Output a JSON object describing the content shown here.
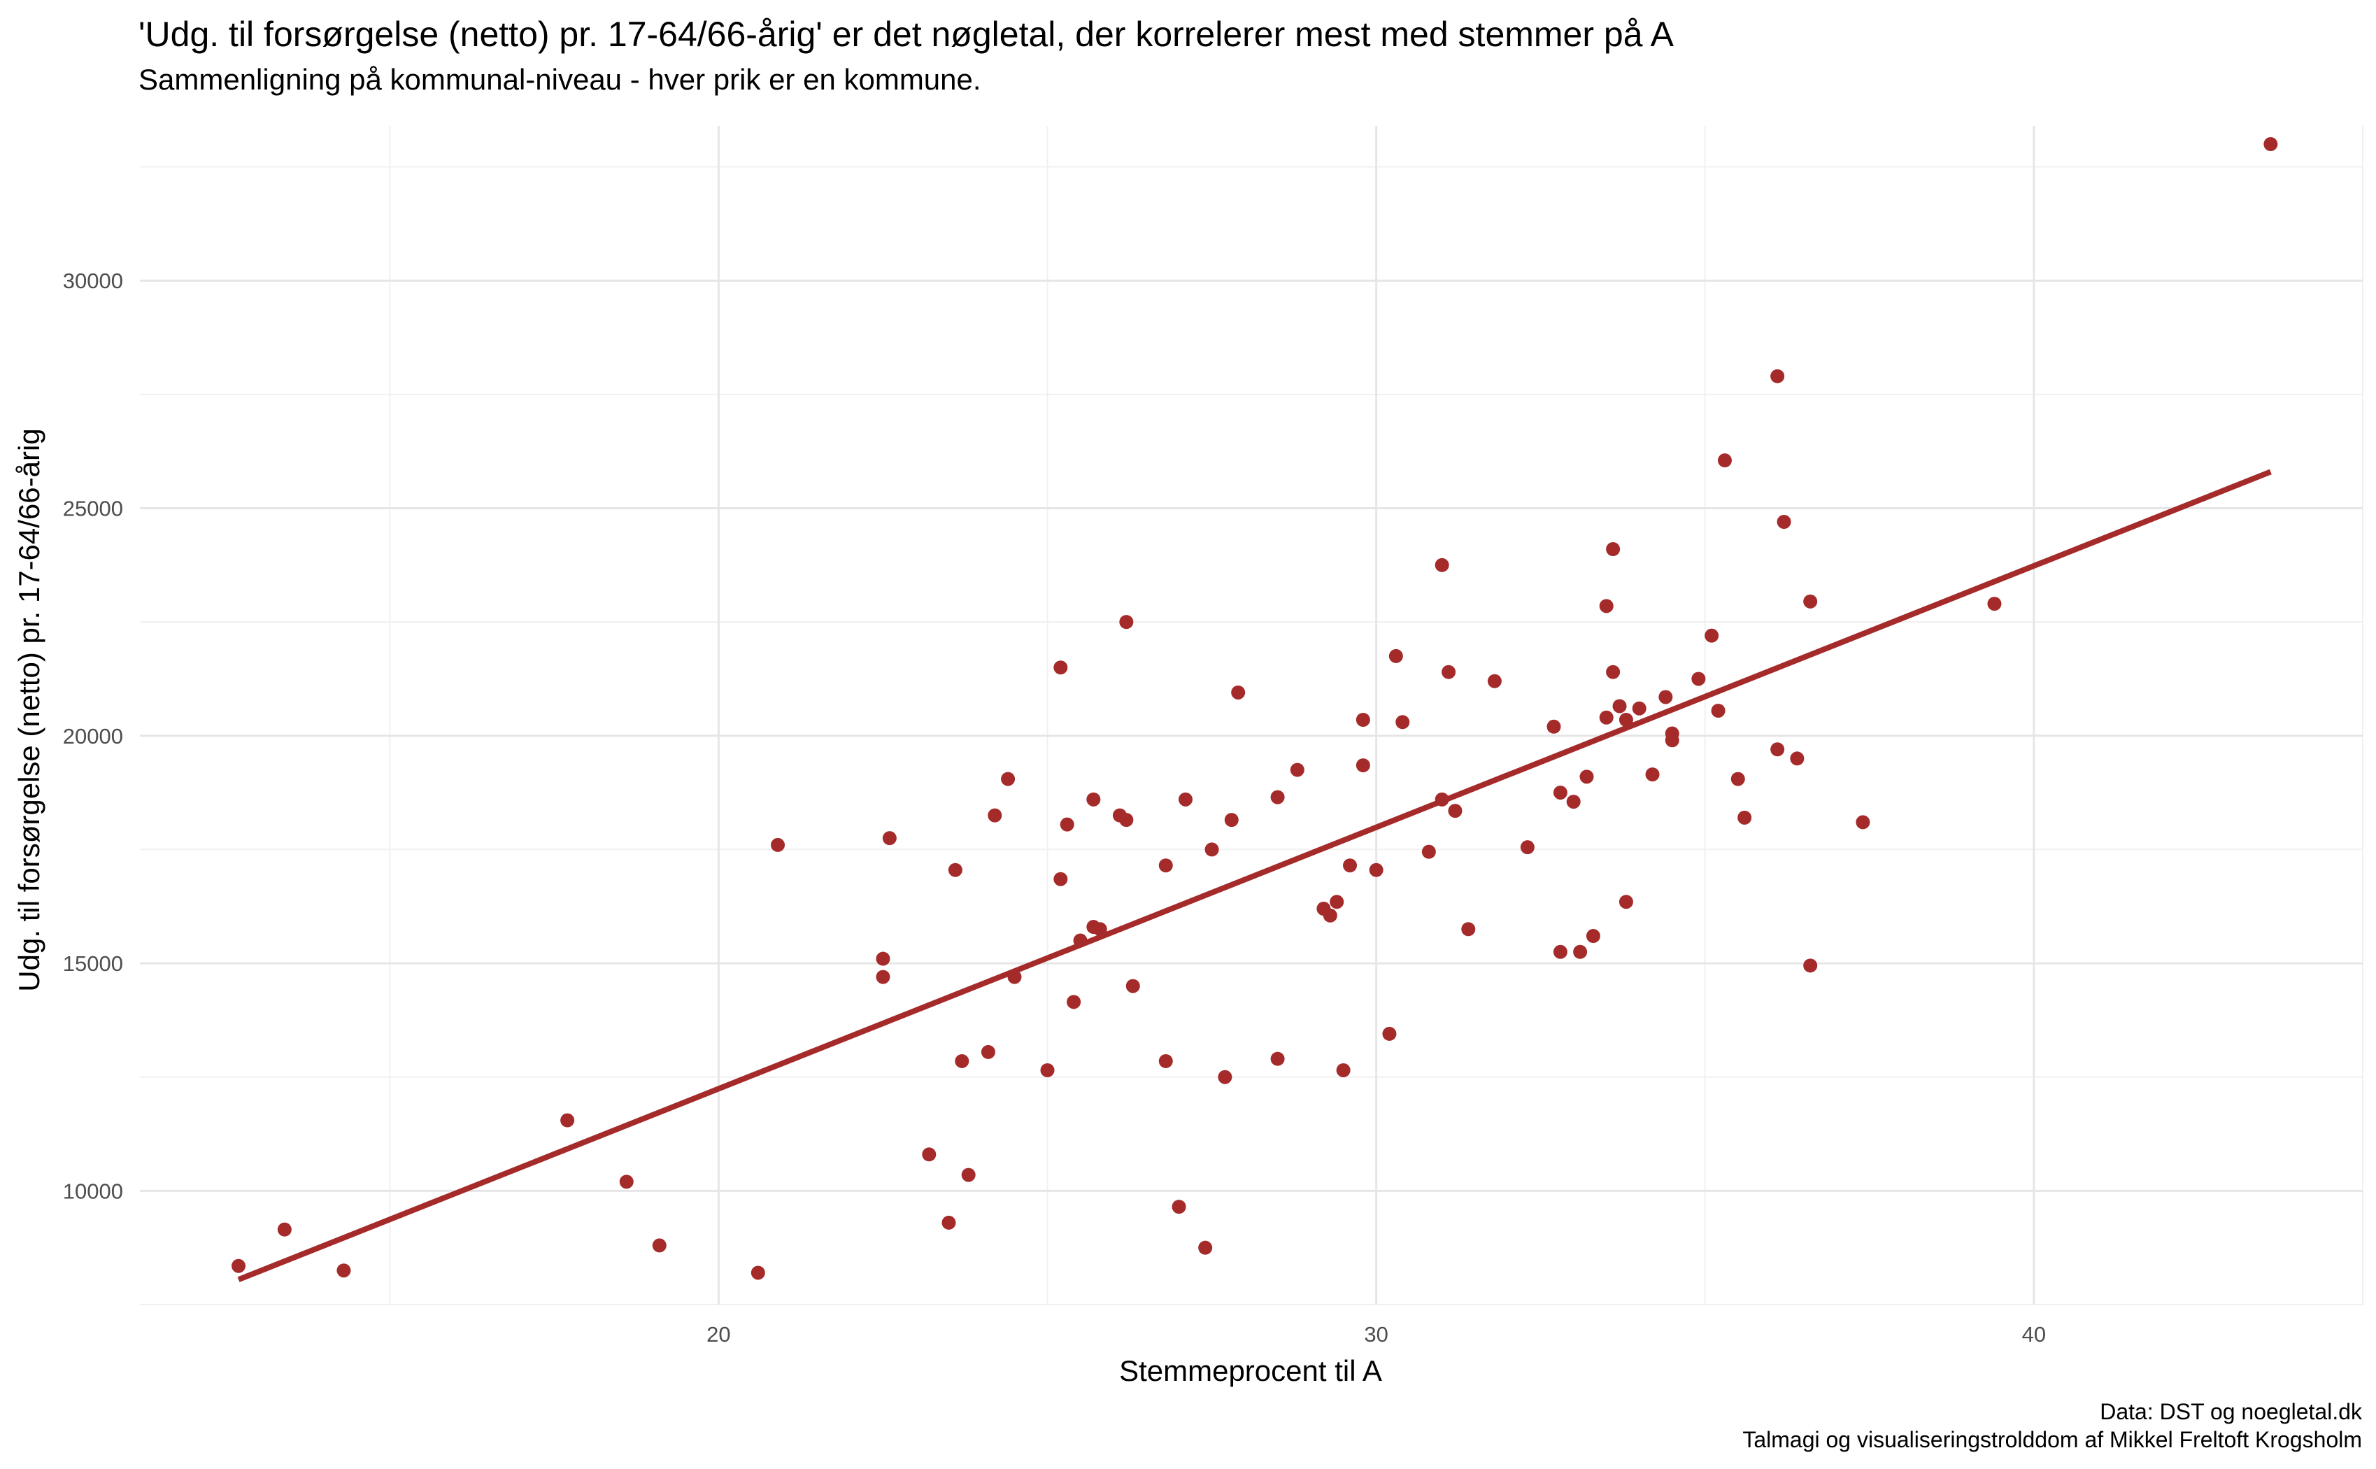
{
  "chart_data": {
    "type": "scatter",
    "title": "'Udg. til forsørgelse (netto) pr. 17-64/66-årig' er det nøgletal, der korrelerer mest med stemmer på A",
    "subtitle": "Sammenligning på kommunal-niveau - hver prik er en kommune.",
    "xlabel": "Stemmeprocent til A",
    "ylabel": "Udg. til forsørgelse (netto) pr. 17-64/66-årig",
    "caption": [
      "Data: DST og noegletal.dk",
      "Talmagi og visualiseringstrolddom af Mikkel Freltoft Krogsholm"
    ],
    "xlim": [
      11.2,
      45.0
    ],
    "ylim": [
      7500,
      33400
    ],
    "x_ticks": [
      20,
      30,
      40
    ],
    "y_ticks": [
      10000,
      15000,
      20000,
      25000,
      30000
    ],
    "grid": true,
    "point_color": "#a52a2a",
    "line_color": "#a52a2a",
    "trend_line": {
      "x": [
        12.7,
        43.6
      ],
      "y": [
        8050,
        25800
      ]
    },
    "points": [
      [
        12.7,
        8350
      ],
      [
        13.4,
        9150
      ],
      [
        14.3,
        8250
      ],
      [
        17.7,
        11550
      ],
      [
        18.6,
        10200
      ],
      [
        19.1,
        8800
      ],
      [
        20.6,
        8200
      ],
      [
        20.9,
        17600
      ],
      [
        22.5,
        15100
      ],
      [
        22.5,
        14700
      ],
      [
        22.6,
        17750
      ],
      [
        23.2,
        10800
      ],
      [
        23.5,
        9300
      ],
      [
        23.6,
        17050
      ],
      [
        23.7,
        12850
      ],
      [
        23.8,
        10350
      ],
      [
        24.1,
        13050
      ],
      [
        24.2,
        18250
      ],
      [
        24.4,
        19050
      ],
      [
        24.5,
        14700
      ],
      [
        25.0,
        12650
      ],
      [
        25.2,
        21500
      ],
      [
        25.2,
        16850
      ],
      [
        25.3,
        18050
      ],
      [
        25.4,
        14150
      ],
      [
        25.5,
        15500
      ],
      [
        25.7,
        15800
      ],
      [
        25.7,
        18600
      ],
      [
        25.8,
        15750
      ],
      [
        26.1,
        18250
      ],
      [
        26.2,
        18150
      ],
      [
        26.2,
        22500
      ],
      [
        26.3,
        14500
      ],
      [
        26.8,
        17150
      ],
      [
        26.8,
        12850
      ],
      [
        27.0,
        9650
      ],
      [
        27.1,
        18600
      ],
      [
        27.4,
        8750
      ],
      [
        27.5,
        17500
      ],
      [
        27.7,
        12500
      ],
      [
        27.8,
        18150
      ],
      [
        27.9,
        20950
      ],
      [
        28.5,
        18650
      ],
      [
        28.5,
        12900
      ],
      [
        28.8,
        19250
      ],
      [
        29.2,
        16200
      ],
      [
        29.3,
        16050
      ],
      [
        29.4,
        16350
      ],
      [
        29.5,
        12650
      ],
      [
        29.6,
        17150
      ],
      [
        29.8,
        20350
      ],
      [
        29.8,
        19350
      ],
      [
        30.0,
        17050
      ],
      [
        30.2,
        13450
      ],
      [
        30.3,
        21750
      ],
      [
        30.4,
        20300
      ],
      [
        30.8,
        17450
      ],
      [
        31.0,
        23750
      ],
      [
        31.0,
        18600
      ],
      [
        31.1,
        21400
      ],
      [
        31.2,
        18350
      ],
      [
        31.4,
        15750
      ],
      [
        31.8,
        21200
      ],
      [
        32.3,
        17550
      ],
      [
        32.7,
        20200
      ],
      [
        32.8,
        15250
      ],
      [
        32.8,
        18750
      ],
      [
        33.0,
        18550
      ],
      [
        33.1,
        15250
      ],
      [
        33.2,
        19100
      ],
      [
        33.3,
        15600
      ],
      [
        33.5,
        22850
      ],
      [
        33.5,
        20400
      ],
      [
        33.6,
        24100
      ],
      [
        33.6,
        21400
      ],
      [
        33.7,
        20650
      ],
      [
        33.8,
        20350
      ],
      [
        33.8,
        16350
      ],
      [
        34.0,
        20600
      ],
      [
        34.2,
        19150
      ],
      [
        34.4,
        20850
      ],
      [
        34.5,
        19900
      ],
      [
        34.5,
        20050
      ],
      [
        34.9,
        21250
      ],
      [
        35.1,
        22200
      ],
      [
        35.2,
        20550
      ],
      [
        35.3,
        26050
      ],
      [
        35.5,
        19050
      ],
      [
        35.6,
        18200
      ],
      [
        36.1,
        27900
      ],
      [
        36.1,
        19700
      ],
      [
        36.2,
        24700
      ],
      [
        36.4,
        19500
      ],
      [
        36.6,
        22950
      ],
      [
        36.6,
        14950
      ],
      [
        37.4,
        18100
      ],
      [
        39.4,
        22900
      ],
      [
        43.6,
        33000
      ]
    ]
  }
}
